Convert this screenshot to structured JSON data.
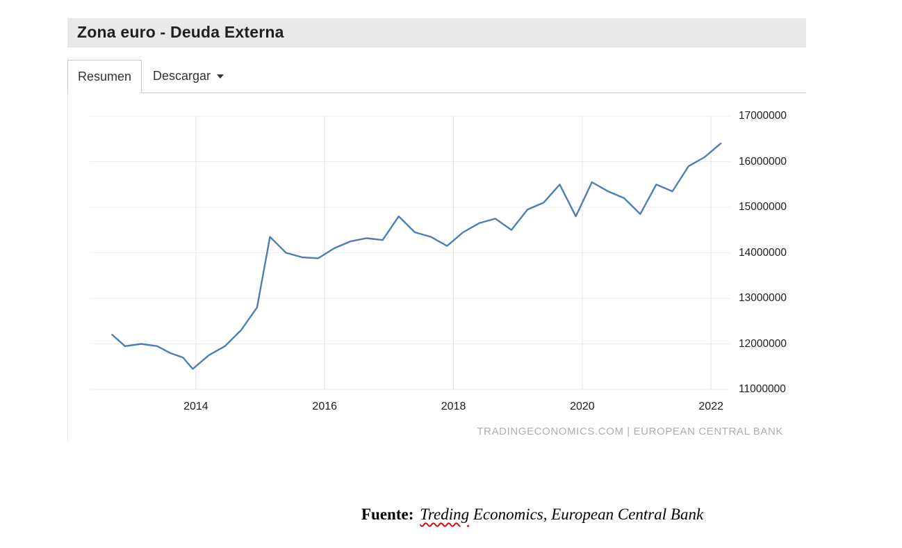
{
  "widget": {
    "title": "Zona euro - Deuda Externa",
    "tabs": [
      {
        "label": "Resumen",
        "active": true
      },
      {
        "label": "Descargar",
        "has_caret": true
      }
    ]
  },
  "chart_data": {
    "type": "line",
    "title": "Zona euro - Deuda Externa",
    "xlabel": "",
    "ylabel": "",
    "xlim": [
      2012.35,
      2022.3
    ],
    "ylim": [
      11000000,
      17000000
    ],
    "grid": true,
    "legend": "none",
    "x_ticks": [
      2014,
      2016,
      2018,
      2020,
      2022
    ],
    "y_ticks": [
      17000000,
      16000000,
      15000000,
      14000000,
      13000000,
      12000000,
      11000000
    ],
    "watermark": "TRADINGECONOMICS.COM | EUROPEAN CENTRAL BANK",
    "series": [
      {
        "name": "Deuda Externa",
        "color": "#4a7fb5",
        "points": [
          [
            2012.7,
            12200000
          ],
          [
            2012.9,
            11950000
          ],
          [
            2013.15,
            12000000
          ],
          [
            2013.4,
            11950000
          ],
          [
            2013.6,
            11800000
          ],
          [
            2013.8,
            11700000
          ],
          [
            2013.95,
            11450000
          ],
          [
            2014.2,
            11750000
          ],
          [
            2014.45,
            11950000
          ],
          [
            2014.7,
            12300000
          ],
          [
            2014.95,
            12800000
          ],
          [
            2015.15,
            14350000
          ],
          [
            2015.4,
            14000000
          ],
          [
            2015.65,
            13900000
          ],
          [
            2015.9,
            13880000
          ],
          [
            2016.15,
            14100000
          ],
          [
            2016.4,
            14250000
          ],
          [
            2016.65,
            14320000
          ],
          [
            2016.9,
            14280000
          ],
          [
            2017.15,
            14800000
          ],
          [
            2017.4,
            14450000
          ],
          [
            2017.65,
            14350000
          ],
          [
            2017.9,
            14150000
          ],
          [
            2018.15,
            14450000
          ],
          [
            2018.4,
            14650000
          ],
          [
            2018.65,
            14750000
          ],
          [
            2018.9,
            14500000
          ],
          [
            2019.15,
            14950000
          ],
          [
            2019.4,
            15100000
          ],
          [
            2019.65,
            15500000
          ],
          [
            2019.9,
            14800000
          ],
          [
            2020.15,
            15550000
          ],
          [
            2020.4,
            15350000
          ],
          [
            2020.65,
            15200000
          ],
          [
            2020.9,
            14850000
          ],
          [
            2021.15,
            15500000
          ],
          [
            2021.4,
            15350000
          ],
          [
            2021.65,
            15900000
          ],
          [
            2021.9,
            16100000
          ],
          [
            2022.15,
            16400000
          ]
        ]
      }
    ]
  },
  "caption": {
    "label": "Fuente:",
    "misspelled_word": "Treding",
    "rest": " Economics, European Central Bank"
  }
}
